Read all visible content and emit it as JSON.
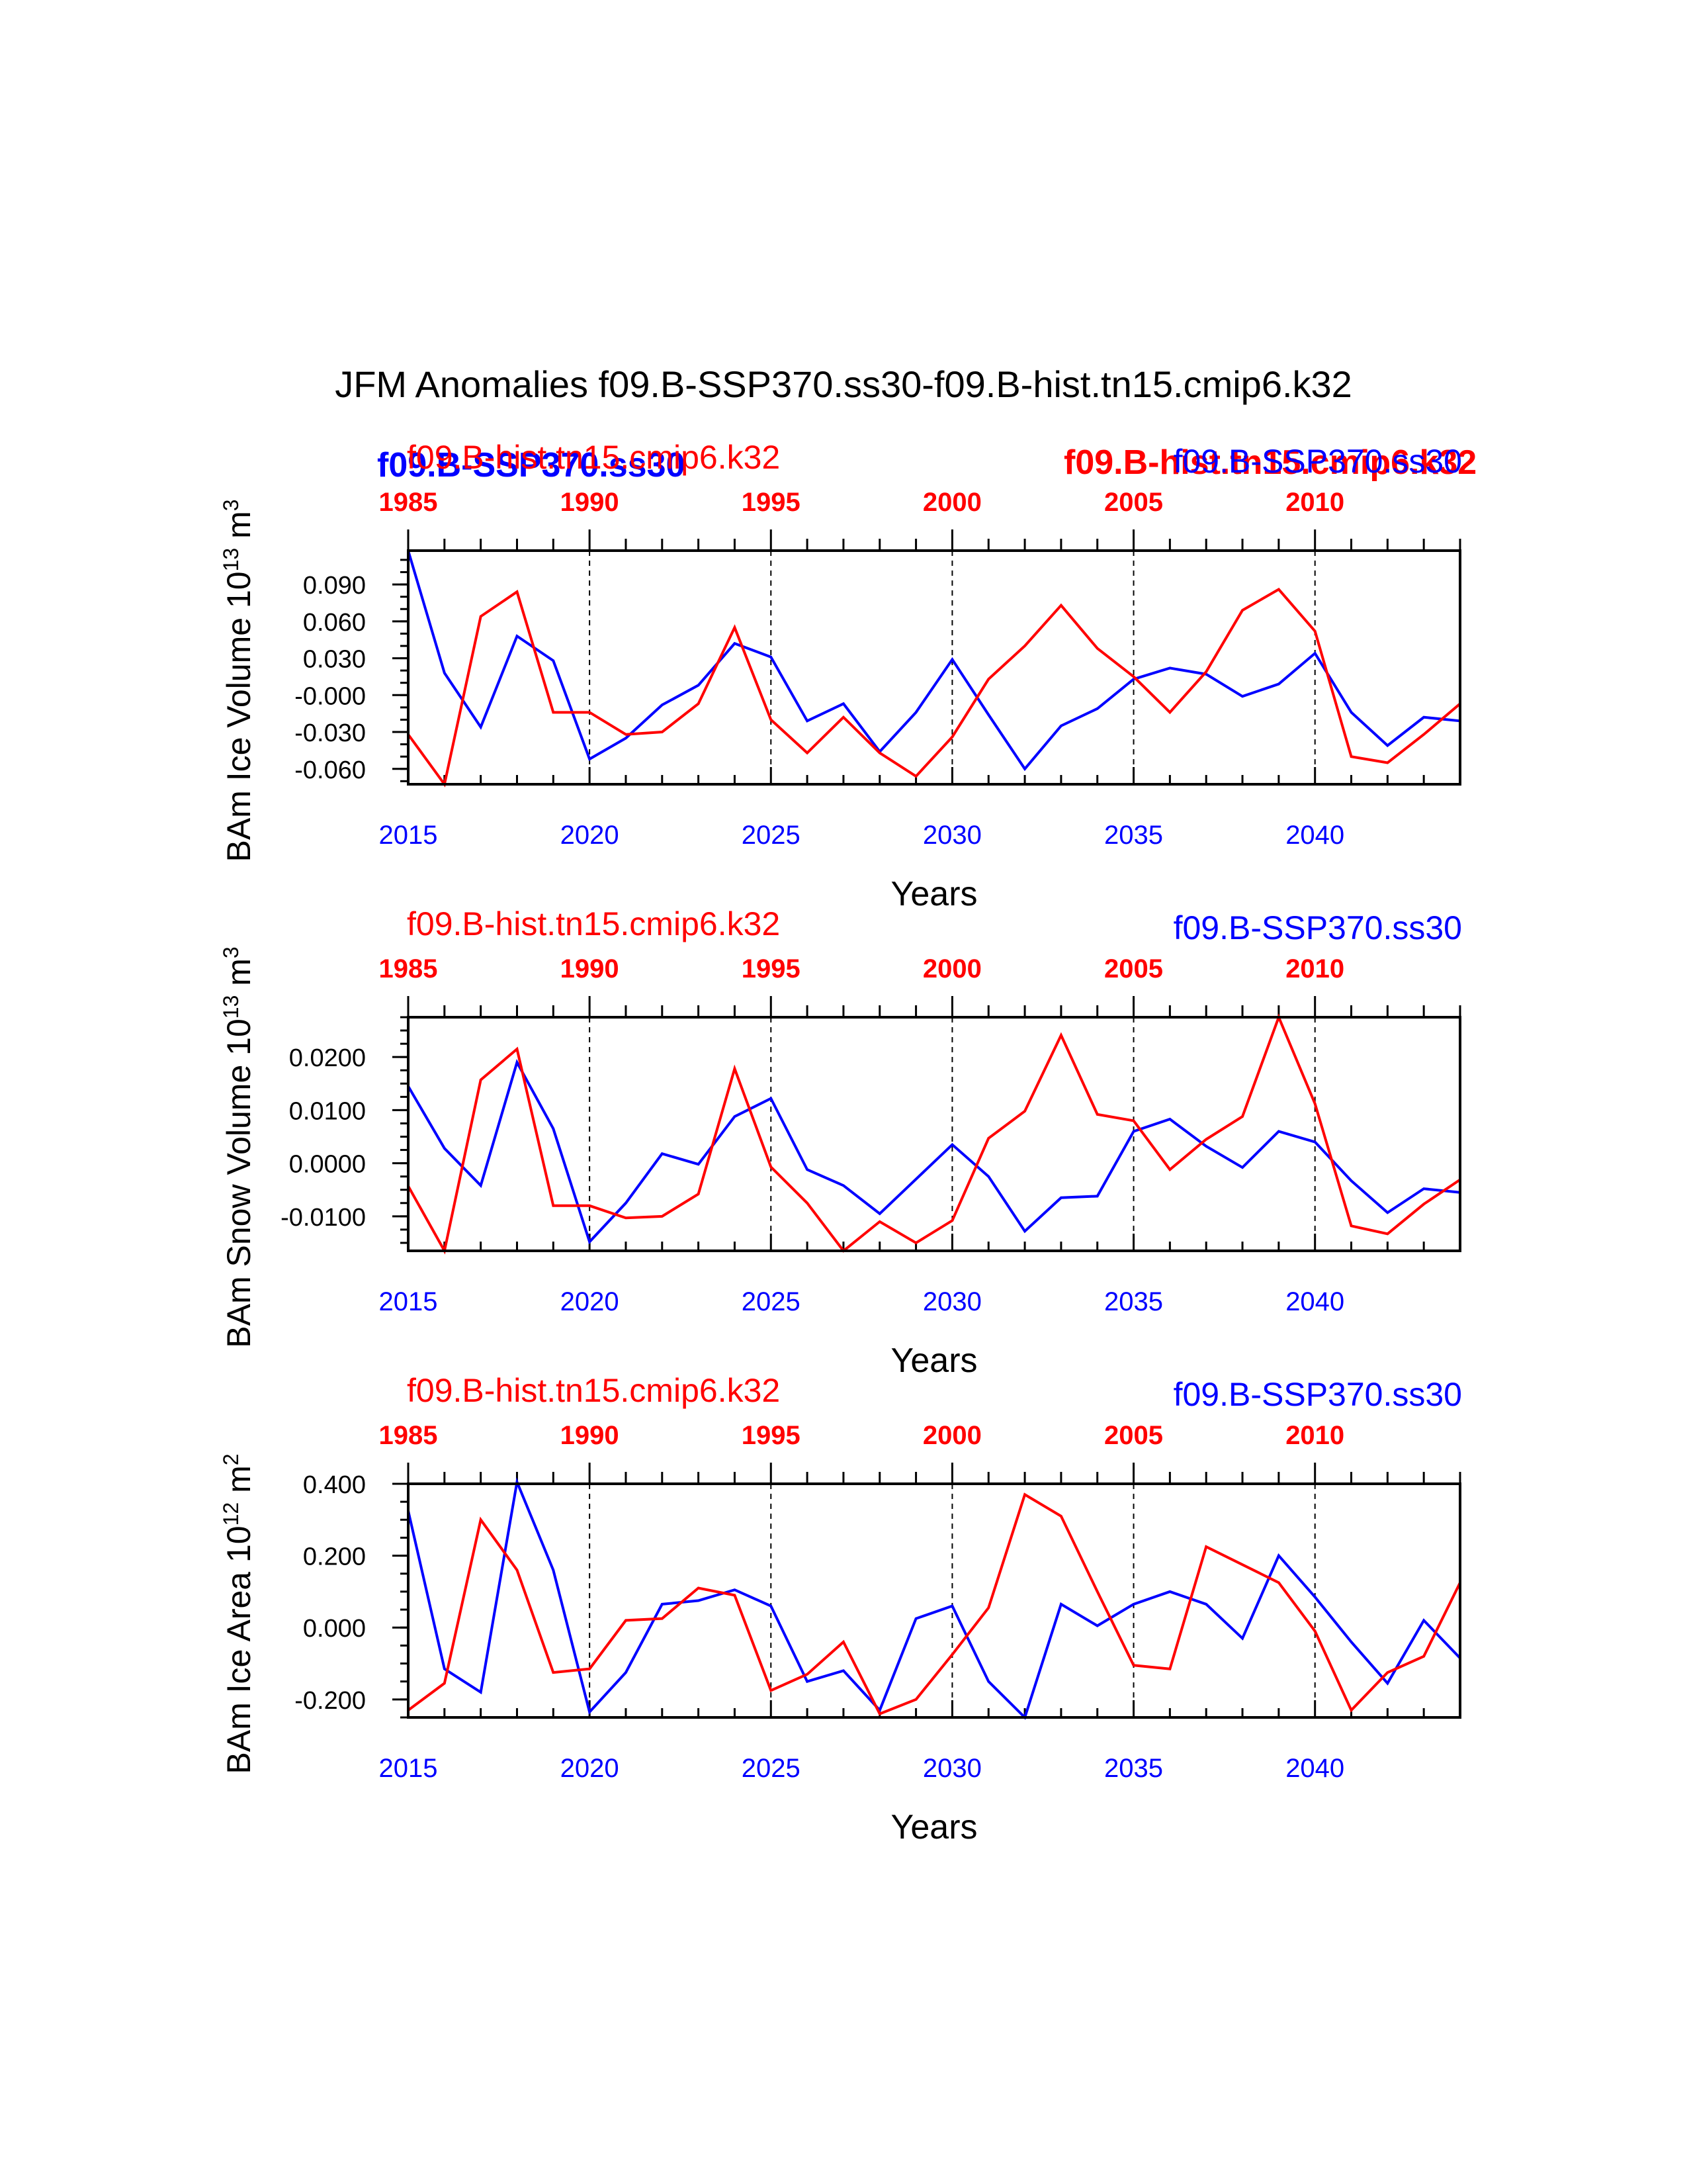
{
  "page_title": "JFM Anomalies f09.B-SSP370.ss30-f09.B-hist.tn15.cmip6.k32",
  "colors": {
    "ssp": "#0000ff",
    "hist": "#ff0000",
    "axis": "#000000"
  },
  "legend": {
    "ssp_bold": "f09.B-SSP370.ss30",
    "hist_bold": "f09.B-hist.tn15.cmip6.k32"
  },
  "chart_data": [
    {
      "type": "line",
      "ylabel_main": "BAm Ice Volume 10",
      "ylabel_sup": "13",
      "ylabel_unit": " m",
      "ylabel_unit_sup": "3",
      "xlabel": "Years",
      "hist_label": "f09.B-hist.tn15.cmip6.k32",
      "ssp_label": "f09.B-SSP370.ss30",
      "x_bottom_ticks": [
        "2015",
        "2020",
        "2025",
        "2030",
        "2035",
        "2040"
      ],
      "x_top_ticks": [
        "1985",
        "1990",
        "1995",
        "2000",
        "2005",
        "2010"
      ],
      "xlim": [
        2015,
        2044
      ],
      "ylim": [
        -0.0725,
        0.1175
      ],
      "yticks": [
        0.09,
        0.06,
        0.03,
        -0.0,
        -0.03,
        -0.06
      ],
      "ytick_labels": [
        "0.090",
        "0.060",
        "0.030",
        "-0.000",
        "-0.030",
        "-0.060"
      ],
      "minor_step": 0.01,
      "series": [
        {
          "name": "f09.B-SSP370.ss30",
          "color": "#0000ff",
          "values": [
            0.1175,
            0.018,
            -0.026,
            0.048,
            0.028,
            -0.052,
            -0.035,
            -0.008,
            0.008,
            0.042,
            0.031,
            -0.021,
            -0.007,
            -0.046,
            -0.014,
            0.029,
            -0.016,
            -0.06,
            -0.025,
            -0.011,
            0.013,
            0.022,
            0.017,
            -0.001,
            0.009,
            0.034,
            -0.014,
            -0.041,
            -0.018,
            -0.021
          ]
        },
        {
          "name": "f09.B-hist.tn15.cmip6.k32",
          "color": "#ff0000",
          "values": [
            -0.032,
            -0.0725,
            0.064,
            0.084,
            -0.014,
            -0.014,
            -0.032,
            -0.03,
            -0.007,
            0.055,
            -0.02,
            -0.047,
            -0.018,
            -0.047,
            -0.066,
            -0.034,
            0.013,
            0.04,
            0.073,
            0.038,
            0.015,
            -0.014,
            0.019,
            0.069,
            0.086,
            0.052,
            -0.05,
            -0.055,
            -0.032,
            -0.007
          ]
        }
      ]
    },
    {
      "type": "line",
      "ylabel_main": "BAm Snow Volume 10",
      "ylabel_sup": "13",
      "ylabel_unit": " m",
      "ylabel_unit_sup": "3",
      "xlabel": "Years",
      "hist_label": "f09.B-hist.tn15.cmip6.k32",
      "ssp_label": "f09.B-SSP370.ss30",
      "x_bottom_ticks": [
        "2015",
        "2020",
        "2025",
        "2030",
        "2035",
        "2040"
      ],
      "x_top_ticks": [
        "1985",
        "1990",
        "1995",
        "2000",
        "2005",
        "2010"
      ],
      "xlim": [
        2015,
        2044
      ],
      "ylim": [
        -0.0165,
        0.0275
      ],
      "yticks": [
        0.02,
        0.01,
        0.0,
        -0.01
      ],
      "ytick_labels": [
        "0.0200",
        "0.0100",
        "0.0000",
        "-0.0100"
      ],
      "minor_step": 0.0025,
      "series": [
        {
          "name": "f09.B-SSP370.ss30",
          "color": "#0000ff",
          "values": [
            0.0145,
            0.0028,
            -0.0042,
            0.019,
            0.0065,
            -0.0148,
            -0.0075,
            0.0018,
            -0.0002,
            0.0088,
            0.0122,
            -0.0012,
            -0.0042,
            -0.0095,
            -0.003,
            0.0035,
            -0.0025,
            -0.0128,
            -0.0065,
            -0.0062,
            0.006,
            0.0083,
            0.0032,
            -0.0008,
            0.006,
            0.004,
            -0.0033,
            -0.0093,
            -0.0048,
            -0.0055
          ]
        },
        {
          "name": "f09.B-hist.tn15.cmip6.k32",
          "color": "#ff0000",
          "values": [
            -0.0043,
            -0.0165,
            0.0157,
            0.0215,
            -0.008,
            -0.008,
            -0.0103,
            -0.01,
            -0.0058,
            0.0178,
            -0.0007,
            -0.0075,
            -0.0165,
            -0.011,
            -0.015,
            -0.0108,
            0.0047,
            0.0098,
            0.0241,
            0.0092,
            0.008,
            -0.0012,
            0.0045,
            0.0088,
            0.0275,
            0.0112,
            -0.0118,
            -0.0133,
            -0.0077,
            -0.0031
          ]
        }
      ]
    },
    {
      "type": "line",
      "ylabel_main": "BAm Ice Area 10",
      "ylabel_sup": "12",
      "ylabel_unit": " m",
      "ylabel_unit_sup": "2",
      "xlabel": "Years",
      "hist_label": "f09.B-hist.tn15.cmip6.k32",
      "ssp_label": "f09.B-SSP370.ss30",
      "x_bottom_ticks": [
        "2015",
        "2020",
        "2025",
        "2030",
        "2035",
        "2040"
      ],
      "x_top_ticks": [
        "1985",
        "1990",
        "1995",
        "2000",
        "2005",
        "2010"
      ],
      "xlim": [
        2015,
        2044
      ],
      "ylim": [
        -0.25,
        0.4
      ],
      "yticks": [
        0.4,
        0.2,
        0.0,
        -0.2
      ],
      "ytick_labels": [
        "0.400",
        "0.200",
        "0.000",
        "-0.200"
      ],
      "minor_step": 0.05,
      "series": [
        {
          "name": "f09.B-SSP370.ss30",
          "color": "#0000ff",
          "values": [
            0.325,
            -0.115,
            -0.18,
            0.405,
            0.16,
            -0.235,
            -0.125,
            0.065,
            0.075,
            0.105,
            0.06,
            -0.15,
            -0.12,
            -0.23,
            0.025,
            0.06,
            -0.15,
            -0.25,
            0.065,
            0.005,
            0.065,
            0.1,
            0.065,
            -0.03,
            0.2,
            0.085,
            -0.04,
            -0.155,
            0.02,
            -0.085
          ]
        },
        {
          "name": "f09.B-hist.tn15.cmip6.k32",
          "color": "#ff0000",
          "values": [
            -0.23,
            -0.155,
            0.3,
            0.16,
            -0.125,
            -0.115,
            0.02,
            0.025,
            0.11,
            0.09,
            -0.175,
            -0.13,
            -0.04,
            -0.24,
            -0.2,
            -0.075,
            0.055,
            0.37,
            0.31,
            0.1,
            -0.105,
            -0.115,
            0.225,
            0.175,
            0.125,
            -0.01,
            -0.23,
            -0.125,
            -0.08,
            0.125
          ]
        }
      ]
    }
  ]
}
